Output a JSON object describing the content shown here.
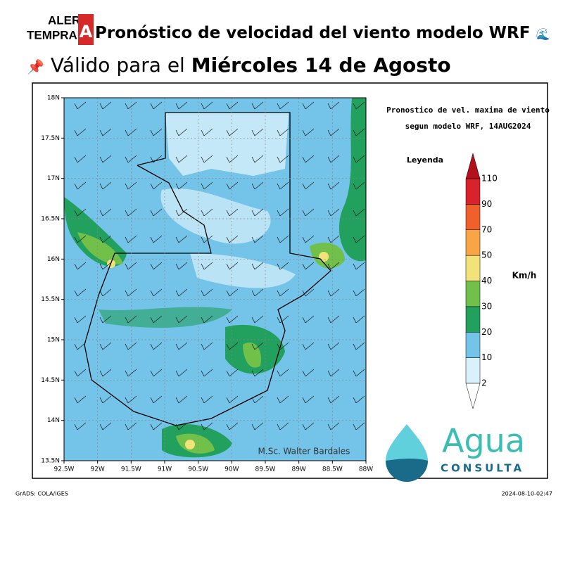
{
  "header": {
    "logo": {
      "line1": "ALERT",
      "line2": "TEMPRAN",
      "badge": "A"
    },
    "title": "Pronóstico de velocidad del viento modelo WRF",
    "valid_prefix": "Válido para el",
    "valid_date": "Miércoles 14 de Agosto"
  },
  "map": {
    "title_lines": [
      "Pronostico de vel. maxima de viento",
      "segun modelo WRF, 14AUG2024"
    ],
    "lat_labels": [
      "18N",
      "17.5N",
      "17N",
      "16.5N",
      "16N",
      "15.5N",
      "15N",
      "14.5N",
      "14N",
      "13.5N"
    ],
    "lon_labels": [
      "92.5W",
      "92W",
      "91.5W",
      "91W",
      "90.5W",
      "90W",
      "89.5W",
      "89W",
      "88.5W",
      "88W"
    ],
    "credit": "M.Sc. Walter Bardales"
  },
  "legend": {
    "title": "Leyenda",
    "unit": "Km/h",
    "levels": [
      2,
      10,
      20,
      30,
      40,
      50,
      70,
      90,
      110
    ],
    "colors": [
      "#d9f1fb",
      "#74c3e9",
      "#22a05e",
      "#70c04a",
      "#f1e27a",
      "#f8a545",
      "#f0602c",
      "#d8222c"
    ],
    "top_color": "#b3101e",
    "bottom_color": "#ffffff"
  },
  "brand": {
    "name": "Agua",
    "subtitle": "CONSULTA"
  },
  "footer": {
    "left": "GrADS: COLA/IGES",
    "right": "2024-08-10-02:47"
  }
}
